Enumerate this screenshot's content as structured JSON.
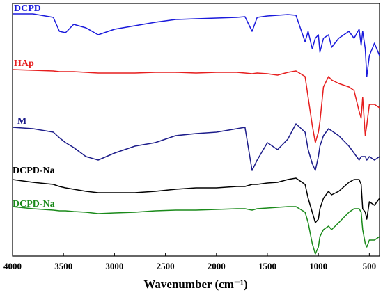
{
  "chart_data": {
    "type": "line",
    "xlabel": "Wavenumber (cm⁻¹)",
    "xlim": [
      4000,
      400
    ],
    "xticks": [
      4000,
      3500,
      3000,
      2500,
      2000,
      1500,
      1000,
      500
    ],
    "ylim": [
      0,
      363
    ],
    "x": [
      4000,
      3800,
      3600,
      3540,
      3480,
      3400,
      3280,
      3160,
      3000,
      2800,
      2600,
      2400,
      2200,
      2000,
      1800,
      1720,
      1650,
      1600,
      1500,
      1400,
      1300,
      1220,
      1130,
      1100,
      1060,
      1030,
      1000,
      985,
      950,
      900,
      870,
      800,
      700,
      650,
      600,
      580,
      565,
      540,
      525,
      500,
      450,
      400
    ],
    "series": [
      {
        "name": "DCPD",
        "color": "#1a1adc",
        "values": [
          348,
          348,
          343,
          323,
          321,
          333,
          328,
          318,
          326,
          331,
          336,
          340,
          341,
          342,
          343,
          344,
          323,
          343,
          345,
          346,
          347,
          346,
          308,
          323,
          298,
          313,
          318,
          293,
          313,
          318,
          300,
          313,
          323,
          313,
          326,
          303,
          323,
          298,
          258,
          288,
          306,
          288
        ]
      },
      {
        "name": "HAp",
        "color": "#e61e1e",
        "values": [
          268,
          267,
          266,
          265,
          265,
          265,
          264,
          263,
          263,
          263,
          264,
          264,
          263,
          264,
          264,
          263,
          262,
          263,
          262,
          260,
          264,
          266,
          258,
          228,
          188,
          163,
          178,
          193,
          243,
          258,
          253,
          248,
          243,
          238,
          208,
          198,
          228,
          173,
          188,
          218,
          218,
          213
        ]
      },
      {
        "name": "M",
        "color": "#1c1c8a",
        "values": [
          185,
          183,
          178,
          170,
          163,
          156,
          143,
          138,
          148,
          158,
          163,
          173,
          176,
          178,
          183,
          185,
          123,
          138,
          163,
          153,
          168,
          190,
          178,
          153,
          133,
          123,
          143,
          158,
          173,
          183,
          180,
          173,
          158,
          148,
          138,
          143,
          143,
          143,
          138,
          143,
          138,
          143
        ]
      },
      {
        "name": "DCPD-Na",
        "color": "#000000",
        "values": [
          110,
          106,
          103,
          100,
          98,
          96,
          93,
          91,
          91,
          91,
          93,
          96,
          98,
          98,
          100,
          100,
          103,
          103,
          105,
          106,
          110,
          112,
          103,
          83,
          63,
          48,
          53,
          68,
          83,
          93,
          88,
          93,
          106,
          110,
          110,
          103,
          68,
          63,
          53,
          78,
          73,
          83
        ]
      },
      {
        "name": "DCPD-Na",
        "color": "#1a8a1a",
        "values": [
          71,
          68,
          66,
          65,
          65,
          64,
          63,
          61,
          62,
          63,
          65,
          66,
          66,
          67,
          68,
          68,
          66,
          68,
          69,
          70,
          71,
          71,
          63,
          48,
          18,
          3,
          13,
          28,
          38,
          43,
          38,
          48,
          63,
          68,
          68,
          63,
          38,
          18,
          13,
          23,
          23,
          28
        ]
      }
    ]
  }
}
